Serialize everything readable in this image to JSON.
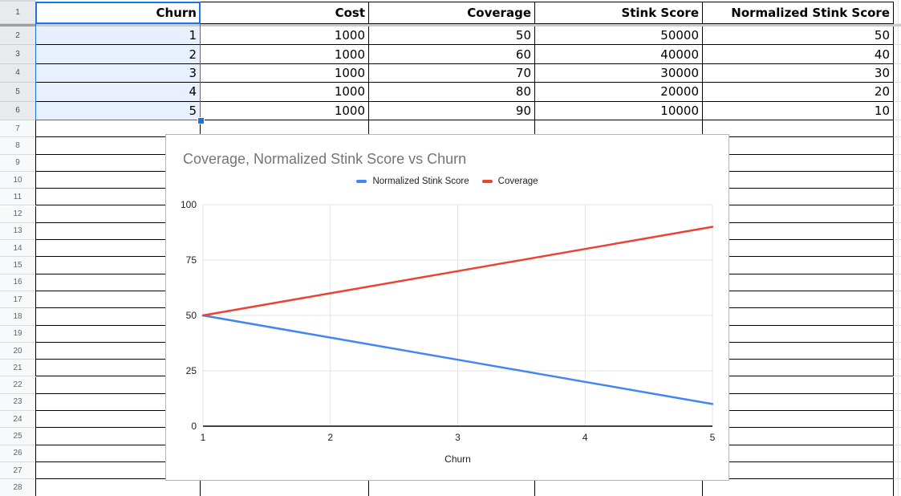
{
  "sheet": {
    "first_row": 1,
    "last_row": 28,
    "columns": [
      "Churn",
      "Cost",
      "Coverage",
      "Stink Score",
      "Normalized Stink Score"
    ],
    "rows": [
      [
        "1",
        "1000",
        "50",
        "50000",
        "50"
      ],
      [
        "2",
        "1000",
        "60",
        "40000",
        "40"
      ],
      [
        "3",
        "1000",
        "70",
        "30000",
        "30"
      ],
      [
        "4",
        "1000",
        "80",
        "20000",
        "20"
      ],
      [
        "5",
        "1000",
        "90",
        "10000",
        "10"
      ]
    ],
    "selection": {
      "range": "A1:A6",
      "active_cell": "A1",
      "selected_row_start": 1,
      "selected_row_end": 6,
      "accent_color": "#1a73e8",
      "fill_color": "#e8f0fe"
    }
  },
  "chart": {
    "title": "Coverage, Normalized Stink Score vs Churn",
    "x_axis_title": "Churn"
  },
  "chart_data": {
    "type": "line",
    "title": "Coverage, Normalized Stink Score vs Churn",
    "x": [
      1,
      2,
      3,
      4,
      5
    ],
    "series": [
      {
        "name": "Normalized Stink Score",
        "color": "#4285F4",
        "values": [
          50,
          40,
          30,
          20,
          10
        ]
      },
      {
        "name": "Coverage",
        "color": "#EA4335",
        "values": [
          50,
          60,
          70,
          80,
          90
        ]
      }
    ],
    "xlabel": "Churn",
    "ylabel": "",
    "xticks": [
      1,
      2,
      3,
      4,
      5
    ],
    "yticks": [
      0,
      25,
      50,
      75,
      100
    ],
    "xlim": [
      1,
      5
    ],
    "ylim": [
      0,
      100
    ],
    "grid": true,
    "legend_position": "top"
  }
}
